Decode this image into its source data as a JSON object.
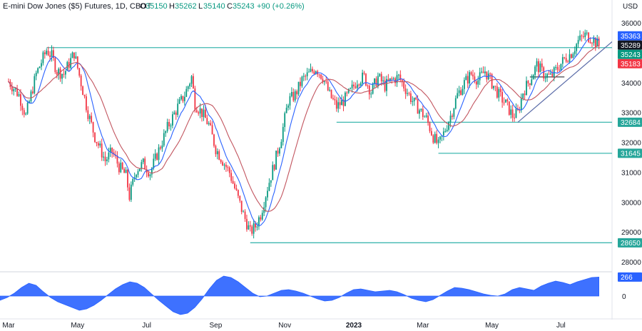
{
  "header": {
    "title": "E-mini Dow Jones ($5) Futures, 1D, CBOT",
    "o_label": "O",
    "o_value": "35150",
    "h_label": "H",
    "h_value": "35262",
    "l_label": "L",
    "l_value": "35140",
    "c_label": "C",
    "c_value": "35243",
    "change": "+90 (+0.26%)"
  },
  "currency": "USD",
  "colors": {
    "up": "#089981",
    "down": "#f23645",
    "ma_fast": "#2962ff",
    "ma_slow": "#c2555f",
    "level": "#3fb8b0",
    "trend": "#5b6ca8",
    "osc": "#2962ff",
    "badge_blue": "#2962ff",
    "badge_dark": "#131722",
    "badge_green": "#089981",
    "badge_red": "#f23645",
    "badge_teal": "#26a69a"
  },
  "chart_data": {
    "type": "candlestick",
    "y_ticks": [
      28000,
      29000,
      30000,
      31000,
      32000,
      33000,
      34000,
      35000,
      36000
    ],
    "y_tick_labels": [
      "28000",
      "29000",
      "30000",
      "31000",
      "32000",
      "33000",
      "34000",
      "35000",
      "36000"
    ],
    "ylim": [
      27750,
      36300
    ],
    "x_ticks": [
      {
        "label": "Mar",
        "month": 0
      },
      {
        "label": "May",
        "month": 2
      },
      {
        "label": "Jul",
        "month": 4
      },
      {
        "label": "Sep",
        "month": 6
      },
      {
        "label": "Nov",
        "month": 8
      },
      {
        "label": "2023",
        "month": 10
      },
      {
        "label": "Mar",
        "month": 12
      },
      {
        "label": "May",
        "month": 14
      },
      {
        "label": "Jul",
        "month": 16
      }
    ],
    "price_path": [
      [
        0,
        34050
      ],
      [
        0.3,
        33600
      ],
      [
        0.5,
        32900
      ],
      [
        0.8,
        34300
      ],
      [
        1.1,
        35100
      ],
      [
        1.25,
        34900
      ],
      [
        1.4,
        34400
      ],
      [
        1.6,
        34300
      ],
      [
        1.9,
        35000
      ],
      [
        2.1,
        34000
      ],
      [
        2.3,
        33000
      ],
      [
        2.5,
        32200
      ],
      [
        2.8,
        31400
      ],
      [
        3.0,
        31700
      ],
      [
        3.2,
        31200
      ],
      [
        3.4,
        30900
      ],
      [
        3.5,
        30200
      ],
      [
        3.7,
        31100
      ],
      [
        3.9,
        31300
      ],
      [
        4.1,
        31000
      ],
      [
        4.3,
        31600
      ],
      [
        4.6,
        32500
      ],
      [
        4.9,
        33200
      ],
      [
        5.1,
        33600
      ],
      [
        5.3,
        34200
      ],
      [
        5.4,
        33300
      ],
      [
        5.6,
        33000
      ],
      [
        5.8,
        32600
      ],
      [
        6.0,
        31800
      ],
      [
        6.2,
        31400
      ],
      [
        6.4,
        31000
      ],
      [
        6.6,
        30300
      ],
      [
        6.8,
        29600
      ],
      [
        7.0,
        29000
      ],
      [
        7.15,
        29200
      ],
      [
        7.3,
        29600
      ],
      [
        7.5,
        30500
      ],
      [
        7.7,
        31300
      ],
      [
        7.9,
        32200
      ],
      [
        8.1,
        33400
      ],
      [
        8.3,
        33600
      ],
      [
        8.5,
        34100
      ],
      [
        8.7,
        34300
      ],
      [
        8.9,
        34500
      ],
      [
        9.1,
        34200
      ],
      [
        9.3,
        33600
      ],
      [
        9.5,
        33200
      ],
      [
        9.7,
        33400
      ],
      [
        9.9,
        33700
      ],
      [
        10.1,
        34100
      ],
      [
        10.3,
        34200
      ],
      [
        10.5,
        33700
      ],
      [
        10.7,
        34200
      ],
      [
        10.9,
        33900
      ],
      [
        11.1,
        34100
      ],
      [
        11.3,
        34200
      ],
      [
        11.5,
        33800
      ],
      [
        11.7,
        33400
      ],
      [
        11.9,
        33100
      ],
      [
        12.1,
        32800
      ],
      [
        12.3,
        32200
      ],
      [
        12.45,
        31900
      ],
      [
        12.6,
        32300
      ],
      [
        12.8,
        32900
      ],
      [
        13.0,
        33600
      ],
      [
        13.2,
        34000
      ],
      [
        13.4,
        34300
      ],
      [
        13.6,
        34100
      ],
      [
        13.8,
        34400
      ],
      [
        14.0,
        34000
      ],
      [
        14.2,
        33600
      ],
      [
        14.4,
        33300
      ],
      [
        14.6,
        32900
      ],
      [
        14.75,
        33000
      ],
      [
        14.9,
        33700
      ],
      [
        15.1,
        34100
      ],
      [
        15.3,
        34600
      ],
      [
        15.5,
        34300
      ],
      [
        15.7,
        34200
      ],
      [
        15.9,
        34500
      ],
      [
        16.1,
        34800
      ],
      [
        16.3,
        35000
      ],
      [
        16.5,
        35400
      ],
      [
        16.7,
        35600
      ],
      [
        16.9,
        35500
      ],
      [
        17.1,
        35243
      ]
    ],
    "overlays": [
      {
        "name": "MA fast",
        "period": 9
      },
      {
        "name": "MA slow",
        "period": 21
      }
    ],
    "levels": [
      {
        "value": 35183,
        "label": "35183",
        "from_month": 1.1
      },
      {
        "value": 32684,
        "label": "32684",
        "from_month": 9.5
      },
      {
        "value": 31645,
        "label": "31645",
        "from_month": 12.45
      },
      {
        "value": 28650,
        "label": "28650",
        "from_month": 7.0
      }
    ],
    "range_box": {
      "from_month": 15.1,
      "to_month": 16.1,
      "value": 34200
    },
    "trendline": {
      "from": [
        14.75,
        32684
      ],
      "to": [
        17.5,
        35400
      ]
    },
    "price_badges": [
      {
        "value": 35363,
        "label": "35363",
        "color": "#2962ff"
      },
      {
        "value": 35289,
        "label": "35289",
        "color": "#131722"
      },
      {
        "value": 35243,
        "label": "35243",
        "color": "#089981"
      },
      {
        "value": 35183,
        "label": "35183",
        "color": "#f23645"
      }
    ],
    "oscillator": {
      "current_label": "266",
      "zero_label": "0",
      "values": [
        -60,
        -20,
        40,
        120,
        180,
        150,
        60,
        -20,
        -80,
        -120,
        -160,
        -200,
        -180,
        -130,
        -60,
        20,
        100,
        160,
        200,
        180,
        120,
        30,
        -60,
        -140,
        -220,
        -260,
        -240,
        -160,
        -40,
        100,
        220,
        280,
        260,
        200,
        120,
        40,
        -10,
        0,
        40,
        80,
        90,
        70,
        40,
        0,
        -40,
        -70,
        -60,
        -20,
        40,
        90,
        100,
        80,
        60,
        70,
        80,
        60,
        20,
        -30,
        -60,
        -80,
        -50,
        10,
        70,
        120,
        110,
        90,
        60,
        30,
        10,
        0,
        30,
        90,
        120,
        100,
        80,
        140,
        180,
        210,
        190,
        160,
        200,
        230,
        260,
        266
      ],
      "ylim": [
        -300,
        320
      ]
    }
  }
}
